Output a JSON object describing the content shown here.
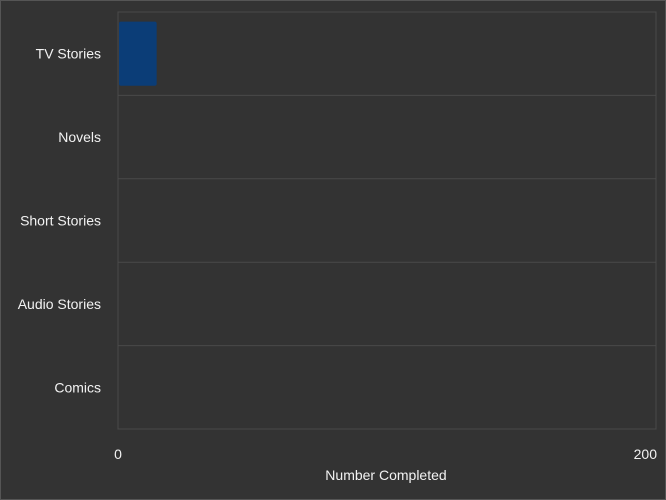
{
  "chart_data": {
    "type": "bar",
    "orientation": "horizontal",
    "title": "",
    "xlabel": "Number Completed",
    "ylabel": "",
    "categories": [
      "TV Stories",
      "Novels",
      "Short Stories",
      "Audio Stories",
      "Comics"
    ],
    "values": [
      14,
      0,
      0,
      0,
      0
    ],
    "xlim": [
      0,
      200
    ],
    "x_ticks": [
      "0",
      "200"
    ],
    "grid": true,
    "legend": "none",
    "colors": {
      "background": "#333333",
      "bar": "#0b3d77",
      "grid": "#4a4a4a",
      "text": "#f2f2f2"
    }
  }
}
